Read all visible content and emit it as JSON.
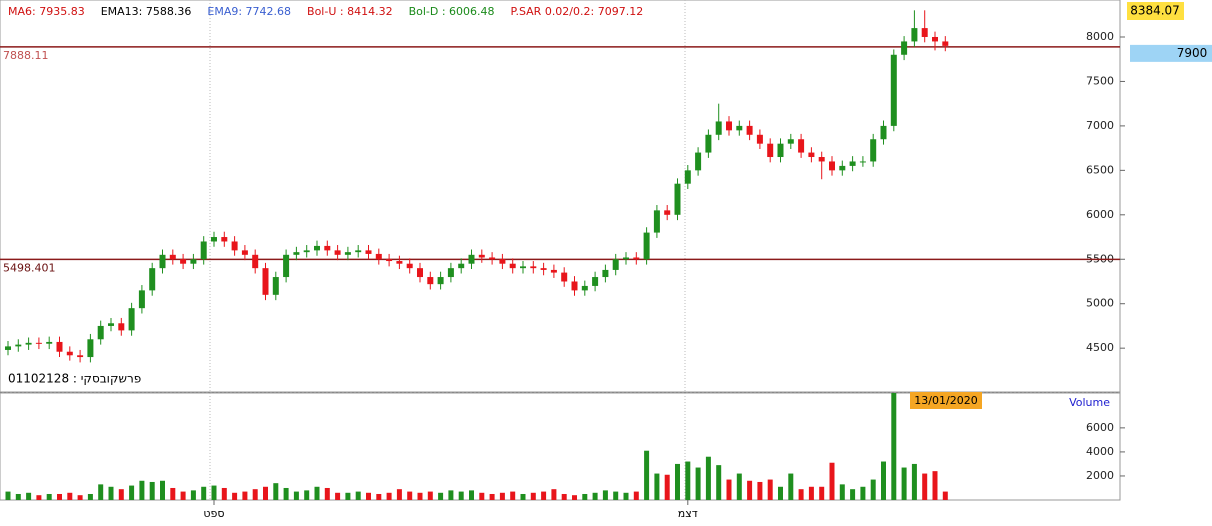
{
  "chart_data": [
    {
      "type": "candlestick",
      "header": [
        {
          "text": "MA6: 7935.83",
          "color": "#d01010"
        },
        {
          "text": "EMA13: 7588.36",
          "color": "#000000"
        },
        {
          "text": "EMA9: 7742.68",
          "color": "#3a5fd0"
        },
        {
          "text": "Bol-U : 8414.32",
          "color": "#d01010"
        },
        {
          "text": "Bol-D : 6006.48",
          "color": "#1a8a1a"
        },
        {
          "text": "P.SAR 0.02/0.2: 7097.12",
          "color": "#d01010"
        }
      ],
      "last_high_label": "8384.07",
      "last_price_label": {
        "value": 7900,
        "label": "7900"
      },
      "annotation": "01102128 : פרשקובסקי",
      "levels": [
        {
          "value": 7888.11,
          "label": "7888.11"
        },
        {
          "value": 5498.401,
          "label": "5498.401"
        }
      ],
      "up_color": "#1f8f1f",
      "down_color": "#e8151b",
      "ylim": [
        4007,
        8416
      ],
      "yticks": [
        4500,
        5000,
        5500,
        6000,
        6500,
        7000,
        7500,
        8000
      ],
      "categories": [
        null,
        null,
        null,
        null,
        null,
        null,
        null,
        null,
        null,
        null,
        null,
        null,
        null,
        null,
        null,
        null,
        null,
        null,
        null,
        null,
        "ספט",
        null,
        null,
        null,
        null,
        null,
        null,
        null,
        null,
        null,
        null,
        null,
        null,
        null,
        null,
        null,
        null,
        null,
        null,
        null,
        null,
        null,
        null,
        null,
        null,
        null,
        null,
        null,
        null,
        null,
        null,
        null,
        null,
        null,
        null,
        null,
        null,
        null,
        null,
        null,
        null,
        null,
        null,
        null,
        null,
        null,
        "דצמ",
        null,
        null,
        null,
        null,
        null,
        null,
        null,
        null,
        null,
        null,
        null,
        null,
        null,
        null,
        null,
        null,
        null,
        null,
        null,
        null,
        null,
        null,
        null,
        null,
        null
      ],
      "open": [
        4480,
        4520,
        4540,
        4560,
        4550,
        4570,
        4460,
        4420,
        4400,
        4600,
        4750,
        4780,
        4700,
        4950,
        5150,
        5400,
        5550,
        5500,
        5450,
        5500,
        5700,
        5750,
        5700,
        5600,
        5550,
        5400,
        5100,
        5300,
        5550,
        5580,
        5600,
        5650,
        5600,
        5550,
        5580,
        5600,
        5560,
        5500,
        5480,
        5450,
        5400,
        5300,
        5220,
        5300,
        5400,
        5450,
        5550,
        5520,
        5500,
        5450,
        5400,
        5420,
        5400,
        5380,
        5350,
        5250,
        5150,
        5200,
        5300,
        5380,
        5500,
        5520,
        5500,
        5800,
        6050,
        6000,
        6350,
        6500,
        6700,
        6900,
        7050,
        6950,
        7000,
        6900,
        6800,
        6650,
        6800,
        6850,
        6700,
        6650,
        6600,
        6500,
        6550,
        6600,
        6600,
        6850,
        7000,
        7800,
        7950,
        8100,
        8000,
        7950
      ],
      "high": [
        4580,
        4600,
        4620,
        4620,
        4630,
        4630,
        4520,
        4480,
        4660,
        4810,
        4840,
        4840,
        5010,
        5210,
        5460,
        5610,
        5610,
        5560,
        5560,
        5760,
        5810,
        5810,
        5760,
        5660,
        5610,
        5460,
        5360,
        5610,
        5640,
        5660,
        5710,
        5710,
        5660,
        5640,
        5660,
        5660,
        5620,
        5560,
        5540,
        5510,
        5460,
        5360,
        5360,
        5460,
        5510,
        5610,
        5610,
        5580,
        5560,
        5510,
        5480,
        5480,
        5460,
        5440,
        5410,
        5310,
        5260,
        5360,
        5440,
        5560,
        5580,
        5580,
        5860,
        6110,
        6110,
        6410,
        6560,
        6760,
        6960,
        7250,
        7110,
        7060,
        7060,
        6960,
        6860,
        6860,
        6910,
        6910,
        6760,
        6710,
        6660,
        6610,
        6660,
        6660,
        6910,
        7060,
        7860,
        8010,
        8300,
        8300,
        8060,
        8010
      ],
      "low": [
        4420,
        4460,
        4480,
        4490,
        4490,
        4400,
        4360,
        4340,
        4340,
        4540,
        4690,
        4640,
        4640,
        4890,
        5090,
        5340,
        5440,
        5390,
        5390,
        5440,
        5640,
        5640,
        5540,
        5490,
        5340,
        5040,
        5040,
        5240,
        5490,
        5520,
        5540,
        5540,
        5490,
        5490,
        5520,
        5500,
        5440,
        5420,
        5390,
        5340,
        5240,
        5160,
        5160,
        5240,
        5340,
        5390,
        5460,
        5440,
        5390,
        5340,
        5340,
        5340,
        5320,
        5290,
        5190,
        5090,
        5090,
        5140,
        5240,
        5320,
        5440,
        5440,
        5440,
        5740,
        5940,
        5940,
        6290,
        6440,
        6640,
        6840,
        6890,
        6890,
        6840,
        6740,
        6590,
        6590,
        6740,
        6640,
        6590,
        6400,
        6440,
        6440,
        6490,
        6540,
        6540,
        6790,
        6940,
        7740,
        7890,
        7940,
        7850,
        7840
      ],
      "close": [
        4520,
        4540,
        4560,
        4550,
        4570,
        4460,
        4420,
        4400,
        4600,
        4750,
        4780,
        4700,
        4950,
        5150,
        5400,
        5550,
        5500,
        5450,
        5500,
        5700,
        5750,
        5700,
        5600,
        5550,
        5400,
        5100,
        5300,
        5550,
        5580,
        5600,
        5650,
        5600,
        5550,
        5580,
        5600,
        5560,
        5500,
        5480,
        5450,
        5400,
        5300,
        5220,
        5300,
        5400,
        5450,
        5550,
        5520,
        5500,
        5450,
        5400,
        5420,
        5400,
        5380,
        5350,
        5250,
        5150,
        5200,
        5300,
        5380,
        5500,
        5520,
        5500,
        5800,
        6050,
        6000,
        6350,
        6500,
        6700,
        6900,
        7050,
        6950,
        7000,
        6900,
        6800,
        6650,
        6800,
        6850,
        6700,
        6650,
        6600,
        6500,
        6550,
        6600,
        6600,
        6850,
        7000,
        7800,
        7950,
        8100,
        8000,
        7950,
        7900
      ]
    },
    {
      "type": "bar",
      "label": "Volume",
      "date_label": "13/01/2020",
      "ylim": [
        0,
        8900
      ],
      "yticks": [
        2000,
        4000,
        6000
      ],
      "values": [
        700,
        500,
        600,
        400,
        500,
        500,
        600,
        400,
        500,
        1300,
        1100,
        900,
        1200,
        1600,
        1500,
        1600,
        1000,
        700,
        800,
        1100,
        1200,
        1000,
        600,
        700,
        900,
        1100,
        1400,
        1000,
        700,
        800,
        1100,
        1000,
        600,
        600,
        700,
        600,
        500,
        600,
        900,
        700,
        600,
        700,
        600,
        800,
        700,
        800,
        600,
        500,
        600,
        700,
        500,
        600,
        700,
        900,
        500,
        400,
        500,
        600,
        800,
        700,
        600,
        700,
        4100,
        2200,
        2100,
        3000,
        3200,
        2700,
        3600,
        2900,
        1700,
        2200,
        1600,
        1500,
        1700,
        1100,
        2200,
        900,
        1100,
        1100,
        3100,
        1300,
        900,
        1100,
        1700,
        3200,
        8900,
        2700,
        3000,
        2200,
        2400,
        700
      ]
    }
  ]
}
